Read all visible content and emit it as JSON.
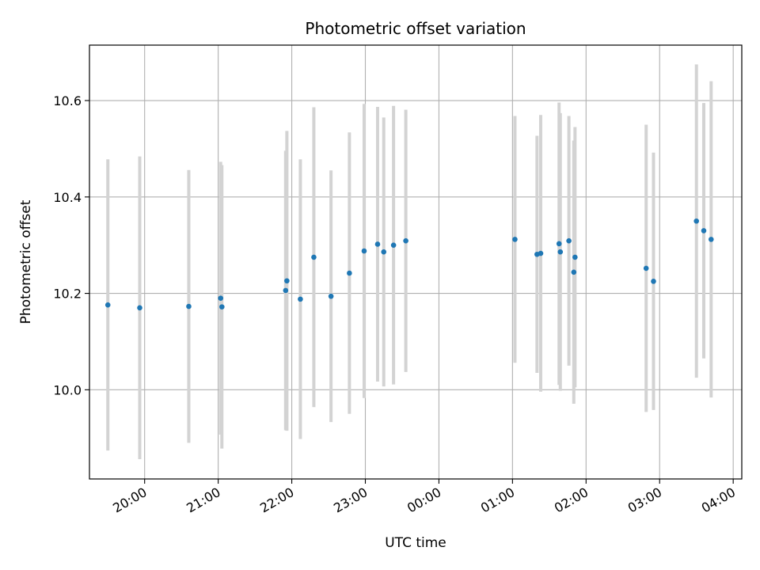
{
  "chart_data": {
    "type": "scatter",
    "title": "Photometric offset variation",
    "xlabel": "UTC time",
    "ylabel": "Photometric offset",
    "x_axis_kind": "time",
    "x_range": [
      "19:15",
      "04:07"
    ],
    "ylim": [
      9.815,
      10.715
    ],
    "x_ticks": [
      "20:00",
      "21:00",
      "22:00",
      "23:00",
      "00:00",
      "01:00",
      "02:00",
      "03:00",
      "04:00"
    ],
    "y_ticks": [
      10.0,
      10.2,
      10.4,
      10.6
    ],
    "grid": true,
    "colors": {
      "point": "#1f77b4",
      "errorbar": "#d3d3d3",
      "grid": "#b0b0b0"
    },
    "points": [
      {
        "t": "19:30",
        "y": 10.176,
        "err": 0.302
      },
      {
        "t": "19:56",
        "y": 10.17,
        "err": 0.314
      },
      {
        "t": "20:36",
        "y": 10.173,
        "err": 0.283
      },
      {
        "t": "21:02",
        "y": 10.19,
        "err": 0.283
      },
      {
        "t": "21:03",
        "y": 10.172,
        "err": 0.294
      },
      {
        "t": "21:55",
        "y": 10.206,
        "err": 0.29
      },
      {
        "t": "21:56",
        "y": 10.226,
        "err": 0.311
      },
      {
        "t": "22:07",
        "y": 10.188,
        "err": 0.29
      },
      {
        "t": "22:18",
        "y": 10.275,
        "err": 0.311
      },
      {
        "t": "22:32",
        "y": 10.194,
        "err": 0.261
      },
      {
        "t": "22:47",
        "y": 10.242,
        "err": 0.292
      },
      {
        "t": "22:59",
        "y": 10.288,
        "err": 0.305
      },
      {
        "t": "23:10",
        "y": 10.302,
        "err": 0.285
      },
      {
        "t": "23:15",
        "y": 10.286,
        "err": 0.279
      },
      {
        "t": "23:23",
        "y": 10.3,
        "err": 0.289
      },
      {
        "t": "23:33",
        "y": 10.309,
        "err": 0.272
      },
      {
        "t": "01:02",
        "y": 10.312,
        "err": 0.256
      },
      {
        "t": "01:20",
        "y": 10.281,
        "err": 0.246
      },
      {
        "t": "01:23",
        "y": 10.283,
        "err": 0.287
      },
      {
        "t": "01:38",
        "y": 10.303,
        "err": 0.293
      },
      {
        "t": "01:39",
        "y": 10.286,
        "err": 0.288
      },
      {
        "t": "01:46",
        "y": 10.309,
        "err": 0.259
      },
      {
        "t": "01:50",
        "y": 10.244,
        "err": 0.273
      },
      {
        "t": "01:51",
        "y": 10.275,
        "err": 0.27
      },
      {
        "t": "02:49",
        "y": 10.252,
        "err": 0.298
      },
      {
        "t": "02:55",
        "y": 10.225,
        "err": 0.267
      },
      {
        "t": "03:30",
        "y": 10.35,
        "err": 0.325
      },
      {
        "t": "03:36",
        "y": 10.33,
        "err": 0.265
      },
      {
        "t": "03:42",
        "y": 10.312,
        "err": 0.328
      }
    ]
  }
}
